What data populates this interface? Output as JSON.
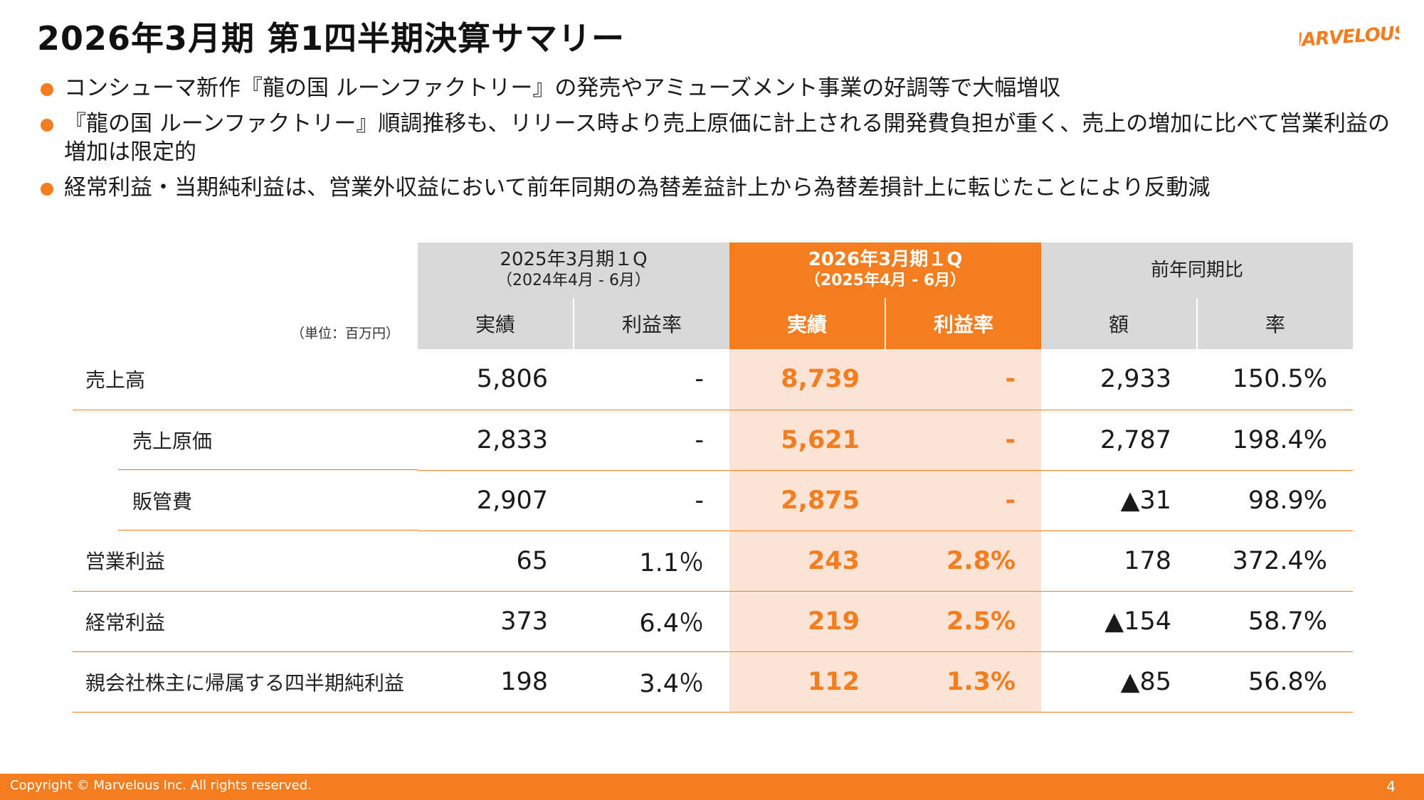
{
  "title": "2026年3月期 第1四半期決算サマリー",
  "logo_text": "MARVELOUS!",
  "bullets": [
    "コンシューマ新作『龍の国 ルーンファクトリー』の発売やアミューズメント事業の好調等で大幅増収",
    "『龍の国 ルーンファクトリー』順調推移も、リリース時より売上原価に計上される開発費負担が重く、売上の増加に比べて営業利益の増加は限定的",
    "経常利益・当期純利益は、営業外収益において前年同期の為替差益計上から為替差損計上に転じたことにより反動減"
  ],
  "table": {
    "unit": "（単位：百万円）",
    "prev_period": {
      "title": "2025年3月期１Q",
      "sub": "（2024年4月 - 6月）"
    },
    "cur_period": {
      "title": "2026年3月期１Q",
      "sub": "（2025年4月 - 6月）"
    },
    "yoy": "前年同期比",
    "sub_headers": {
      "prev_actual": "実績",
      "prev_margin": "利益率",
      "cur_actual": "実績",
      "cur_margin": "利益率",
      "yoy_amount": "額",
      "yoy_rate": "率"
    },
    "rows": [
      {
        "label": "売上高",
        "prev_actual": "5,806",
        "prev_margin": "-",
        "cur_actual": "8,739",
        "cur_margin": "-",
        "yoy_amount": "2,933",
        "yoy_rate": "150.5%"
      },
      {
        "label": "売上原価",
        "prev_actual": "2,833",
        "prev_margin": "-",
        "cur_actual": "5,621",
        "cur_margin": "-",
        "yoy_amount": "2,787",
        "yoy_rate": "198.4%"
      },
      {
        "label": "販管費",
        "prev_actual": "2,907",
        "prev_margin": "-",
        "cur_actual": "2,875",
        "cur_margin": "-",
        "yoy_amount": "▲31",
        "yoy_rate": "98.9%"
      },
      {
        "label": "営業利益",
        "prev_actual": "65",
        "prev_margin": "1.1％",
        "cur_actual": "243",
        "cur_margin": "2.8%",
        "yoy_amount": "178",
        "yoy_rate": "372.4%"
      },
      {
        "label": "経常利益",
        "prev_actual": "373",
        "prev_margin": "6.4％",
        "cur_actual": "219",
        "cur_margin": "2.5%",
        "yoy_amount": "▲154",
        "yoy_rate": "58.7%"
      },
      {
        "label": "親会社株主に帰属する四半期純利益",
        "prev_actual": "198",
        "prev_margin": "3.4％",
        "cur_actual": "112",
        "cur_margin": "1.3%",
        "yoy_amount": "▲85",
        "yoy_rate": "56.8%"
      }
    ]
  },
  "footer": {
    "copyright": "Copyright © Marvelous Inc. All rights reserved.",
    "page": "4"
  },
  "colors": {
    "accent": "#f47d1f",
    "highlight_bg": "#fbe4d5",
    "header_gray": "#d9d9d9"
  }
}
